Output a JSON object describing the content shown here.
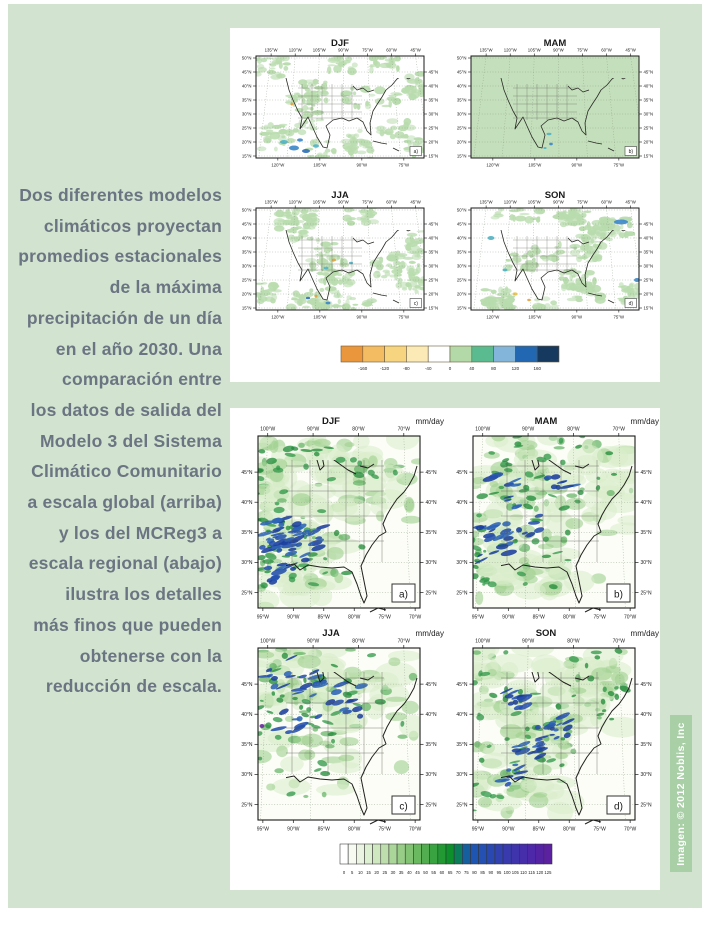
{
  "page": {
    "background_color": "#d2e4cf",
    "panel_color": "#ffffff",
    "credit_strip_color": "#a8cfa5",
    "caption_color": "#6b7482",
    "caption_lines": [
      "Dos diferentes modelos",
      "climáticos proyectan",
      "promedios estacionales",
      "de la máxima",
      "precipitación de un día",
      "en el año 2030. Una",
      "comparación entre",
      "los datos de salida del",
      "Modelo 3 del Sistema",
      "Climático Comunitario",
      "a escala global (arriba)",
      "y los del MCReg3 a",
      "escala regional (abajo)",
      "ilustra los detalles",
      "más finos que pueden",
      "obtenerse con la",
      "reducción de escala."
    ],
    "credit": "Imagen: © 2012 Noblis, Inc"
  },
  "global_panel": {
    "maps": [
      {
        "title": "DJF",
        "corner_label": "a)"
      },
      {
        "title": "MAM",
        "corner_label": "b)"
      },
      {
        "title": "JJA",
        "corner_label": "c)"
      },
      {
        "title": "SON",
        "corner_label": "d)"
      }
    ],
    "axes": {
      "top": [
        "135°W",
        "120°W",
        "105°W",
        "90°W",
        "75°W",
        "60°W",
        "45°W"
      ],
      "left": [
        "50°N",
        "45°N",
        "40°N",
        "35°N",
        "30°N",
        "25°N",
        "20°N",
        "15°N"
      ],
      "right": [
        "45°N",
        "40°N",
        "35°N",
        "30°N",
        "25°N",
        "20°N",
        "15°N"
      ],
      "bottom": [
        "120°W",
        "105°W",
        "90°W",
        "75°W"
      ]
    },
    "colorbar": {
      "cell_colors": [
        "#ea963c",
        "#f3bc63",
        "#f7d480",
        "#fbeab5",
        "#ffffff",
        "#b4d9a9",
        "#5abb90",
        "#83b4da",
        "#2267b1",
        "#15395f"
      ],
      "tick_labels": [
        "-160",
        "-120",
        "-80",
        "-40",
        "0",
        "40",
        "80",
        "120",
        "160"
      ]
    }
  },
  "regional_panel": {
    "units_label": "mm/day",
    "maps": [
      {
        "title": "DJF",
        "corner_label": "a)"
      },
      {
        "title": "MAM",
        "corner_label": "b)"
      },
      {
        "title": "JJA",
        "corner_label": "c)"
      },
      {
        "title": "SON",
        "corner_label": "d)"
      }
    ],
    "axes": {
      "top": [
        "100°W",
        "90°W",
        "80°W",
        "70°W"
      ],
      "left": [
        "45°N",
        "40°N",
        "35°N",
        "30°N",
        "25°N"
      ],
      "right": [
        "45°N",
        "40°N",
        "35°N",
        "30°N",
        "25°N"
      ],
      "bottom": [
        "95°W",
        "90°W",
        "85°W",
        "80°W",
        "75°W",
        "70°W"
      ]
    },
    "colorbar": {
      "cell_colors": [
        "#ffffff",
        "#f6faf1",
        "#ebf4e2",
        "#def0d2",
        "#cfe8c0",
        "#bedfad",
        "#abd69a",
        "#97cd86",
        "#81c273",
        "#6ab860",
        "#51ad50",
        "#3aa341",
        "#239934",
        "#0d8f2b",
        "#0b7d58",
        "#155f9e",
        "#1e55b2",
        "#2450b4",
        "#2a48b2",
        "#3141b0",
        "#383aae",
        "#3f34ac",
        "#462eaa",
        "#4d28a8",
        "#5423a4",
        "#5b21a0"
      ],
      "tick_labels": [
        "0",
        "5",
        "10",
        "15",
        "20",
        "25",
        "30",
        "35",
        "40",
        "45",
        "50",
        "55",
        "60",
        "65",
        "70",
        "75",
        "80",
        "85",
        "90",
        "95",
        "100",
        "105",
        "110",
        "115",
        "120",
        "125"
      ]
    }
  }
}
